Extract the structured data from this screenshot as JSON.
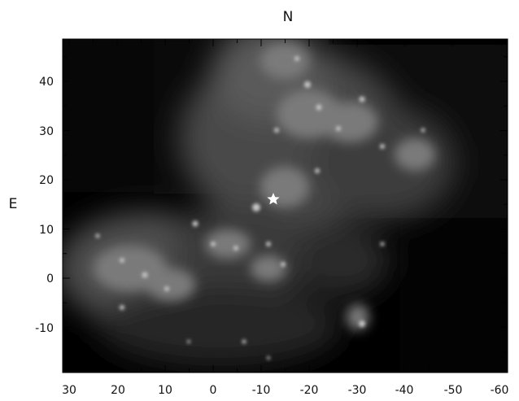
{
  "orientation": {
    "north": "N",
    "east": "E"
  },
  "axes": {
    "x": {
      "ticks": [
        "30",
        "20",
        "10",
        "0",
        "-10",
        "-20",
        "-30",
        "-40",
        "-50",
        "-60"
      ]
    },
    "y": {
      "ticks": [
        "40",
        "30",
        "20",
        "10",
        "0",
        "-10"
      ]
    }
  },
  "image": {
    "subject": "nebula",
    "marker": "star-icon",
    "marker_color": "#ffffff",
    "background_color": "#000000"
  }
}
